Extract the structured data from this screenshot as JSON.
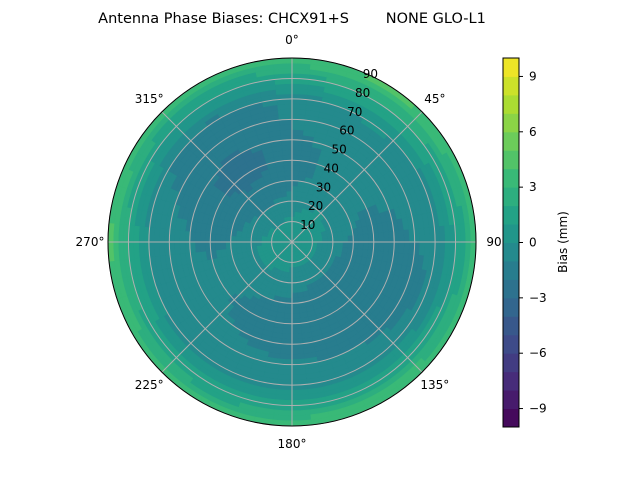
{
  "chart_data": {
    "type": "heatmap",
    "projection": "polar",
    "title": "Antenna Phase Biases: CHCX91+S        NONE GLO-L1",
    "theta_direction": "clockwise",
    "theta_zero": "north",
    "theta_tick_labels": [
      "0°",
      "45°",
      "90",
      "135°",
      "180°",
      "225°",
      "270°",
      "315°"
    ],
    "theta_ticks": [
      0,
      45,
      90,
      135,
      180,
      225,
      270,
      315
    ],
    "r_ticks": [
      10,
      20,
      30,
      40,
      50,
      60,
      70,
      80,
      90
    ],
    "r_tick_labels": [
      "10",
      "20",
      "30",
      "40",
      "50",
      "60",
      "70",
      "80",
      "90"
    ],
    "rlim": [
      0,
      90
    ],
    "grid": true,
    "radial_profile": {
      "zenith_deg": [
        0,
        10,
        20,
        30,
        40,
        50,
        60,
        70,
        80,
        85,
        90
      ],
      "bias_mm": [
        0.5,
        0.3,
        -0.5,
        -1.2,
        -1.5,
        -1.3,
        -0.8,
        -0.6,
        1.5,
        2.5,
        4.0
      ]
    },
    "colormap": "viridis",
    "colorbar": {
      "label": "Bias (mm)",
      "range": [
        -10,
        10
      ],
      "levels": 20,
      "ticks": [
        -9,
        -6,
        -3,
        0,
        3,
        6,
        9
      ],
      "tick_labels": [
        "−9",
        "−6",
        "−3",
        "0",
        "3",
        "6",
        "9"
      ]
    }
  }
}
